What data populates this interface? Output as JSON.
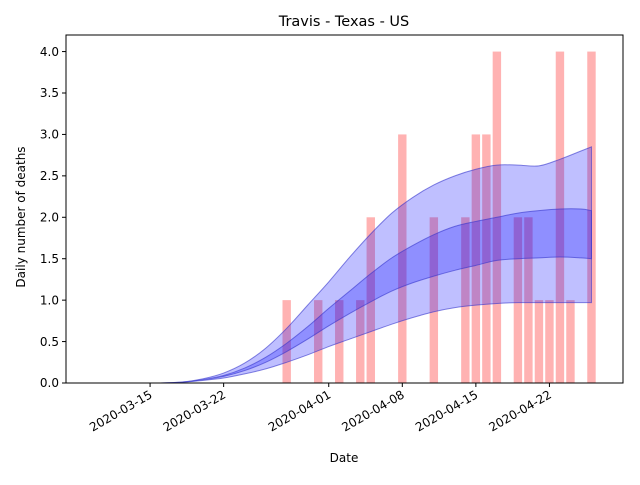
{
  "chart_data": {
    "type": "bar",
    "title": "Travis - Texas - US",
    "xlabel": "Date",
    "ylabel": "Daily number of deaths",
    "xlim": [
      "2020-03-07",
      "2020-04-29"
    ],
    "ylim": [
      0,
      4.2
    ],
    "x_ticks": [
      "2020-03-15",
      "2020-03-22",
      "2020-04-01",
      "2020-04-08",
      "2020-04-15",
      "2020-04-22"
    ],
    "y_ticks": [
      0.0,
      0.5,
      1.0,
      1.5,
      2.0,
      2.5,
      3.0,
      3.5,
      4.0
    ],
    "y_tick_labels": [
      "0.0",
      "0.5",
      "1.0",
      "1.5",
      "2.0",
      "2.5",
      "3.0",
      "3.5",
      "4.0"
    ],
    "grid": false,
    "colors": {
      "bars": "#ffb2b2",
      "band_fill": "#0000ff",
      "band_stroke": "#3434cc"
    },
    "series": [
      {
        "type": "bar",
        "x": [
          "2020-03-28",
          "2020-03-31",
          "2020-04-02",
          "2020-04-04",
          "2020-04-05",
          "2020-04-08",
          "2020-04-11",
          "2020-04-14",
          "2020-04-15",
          "2020-04-16",
          "2020-04-17",
          "2020-04-19",
          "2020-04-20",
          "2020-04-21",
          "2020-04-22",
          "2020-04-23",
          "2020-04-24",
          "2020-04-26"
        ],
        "values": [
          1,
          1,
          1,
          1,
          2,
          3,
          2,
          2,
          3,
          3,
          4,
          2,
          2,
          1,
          1,
          4,
          1,
          4
        ]
      },
      {
        "type": "band",
        "x": [
          "2020-03-14",
          "2020-03-16",
          "2020-03-18",
          "2020-03-20",
          "2020-03-22",
          "2020-03-24",
          "2020-03-26",
          "2020-03-28",
          "2020-03-30",
          "2020-04-01",
          "2020-04-03",
          "2020-04-05",
          "2020-04-07",
          "2020-04-09",
          "2020-04-11",
          "2020-04-13",
          "2020-04-15",
          "2020-04-17",
          "2020-04-19",
          "2020-04-21",
          "2020-04-23",
          "2020-04-25",
          "2020-04-26"
        ],
        "lower": [
          0,
          0,
          0.01,
          0.03,
          0.06,
          0.11,
          0.17,
          0.25,
          0.34,
          0.44,
          0.53,
          0.62,
          0.71,
          0.79,
          0.86,
          0.91,
          0.94,
          0.96,
          0.97,
          0.97,
          0.97,
          0.97,
          0.97
        ],
        "upper": [
          0,
          0,
          0.01,
          0.05,
          0.12,
          0.24,
          0.42,
          0.66,
          0.94,
          1.22,
          1.52,
          1.8,
          2.05,
          2.24,
          2.39,
          2.5,
          2.58,
          2.63,
          2.63,
          2.62,
          2.7,
          2.8,
          2.85
        ]
      },
      {
        "type": "band",
        "x": [
          "2020-03-14",
          "2020-03-16",
          "2020-03-18",
          "2020-03-20",
          "2020-03-22",
          "2020-03-24",
          "2020-03-26",
          "2020-03-28",
          "2020-03-30",
          "2020-04-01",
          "2020-04-03",
          "2020-04-05",
          "2020-04-07",
          "2020-04-09",
          "2020-04-11",
          "2020-04-13",
          "2020-04-15",
          "2020-04-17",
          "2020-04-19",
          "2020-04-21",
          "2020-04-23",
          "2020-04-25",
          "2020-04-26"
        ],
        "lower": [
          0,
          0,
          0.01,
          0.04,
          0.08,
          0.15,
          0.25,
          0.38,
          0.53,
          0.69,
          0.84,
          0.98,
          1.11,
          1.21,
          1.29,
          1.36,
          1.42,
          1.48,
          1.5,
          1.51,
          1.52,
          1.51,
          1.5
        ],
        "upper": [
          0,
          0,
          0.01,
          0.04,
          0.09,
          0.18,
          0.31,
          0.48,
          0.68,
          0.9,
          1.11,
          1.32,
          1.51,
          1.66,
          1.79,
          1.89,
          1.95,
          2.0,
          2.05,
          2.08,
          2.1,
          2.1,
          2.08
        ]
      }
    ]
  }
}
